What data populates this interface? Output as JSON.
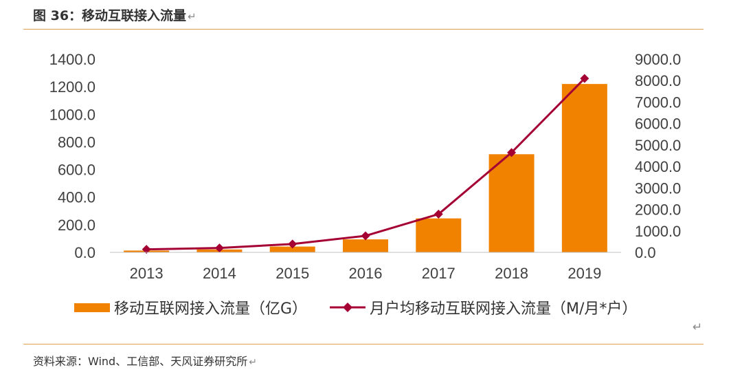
{
  "header": {
    "title": "图 36：移动互联接入流量",
    "return_mark": "↵"
  },
  "footer": {
    "source": "资料来源：Wind、工信部、天风证券研究所",
    "return_mark": "↵"
  },
  "chart_data": {
    "type": "bar+line",
    "categories": [
      "2013",
      "2014",
      "2015",
      "2016",
      "2017",
      "2018",
      "2019"
    ],
    "series": [
      {
        "name": "移动互联网接入流量（亿G）",
        "type": "bar",
        "axis": "left",
        "color": "#F08200",
        "values": [
          13,
          21,
          42,
          94,
          246,
          711,
          1220
        ]
      },
      {
        "name": "月户均移动互联网接入流量（M/月*户）",
        "type": "line",
        "axis": "right",
        "color": "#A50034",
        "values": [
          140,
          205,
          390,
          770,
          1780,
          4650,
          8100
        ]
      }
    ],
    "y_left": {
      "min": 0,
      "max": 1400,
      "ticks": [
        "0.0",
        "200.0",
        "400.0",
        "600.0",
        "800.0",
        "1000.0",
        "1200.0",
        "1400.0"
      ]
    },
    "y_right": {
      "min": 0,
      "max": 9000,
      "ticks": [
        "0.0",
        "1000.0",
        "2000.0",
        "3000.0",
        "4000.0",
        "5000.0",
        "6000.0",
        "7000.0",
        "8000.0",
        "9000.0"
      ]
    },
    "legend_position": "bottom",
    "grid": false
  },
  "para_mark": "↵"
}
